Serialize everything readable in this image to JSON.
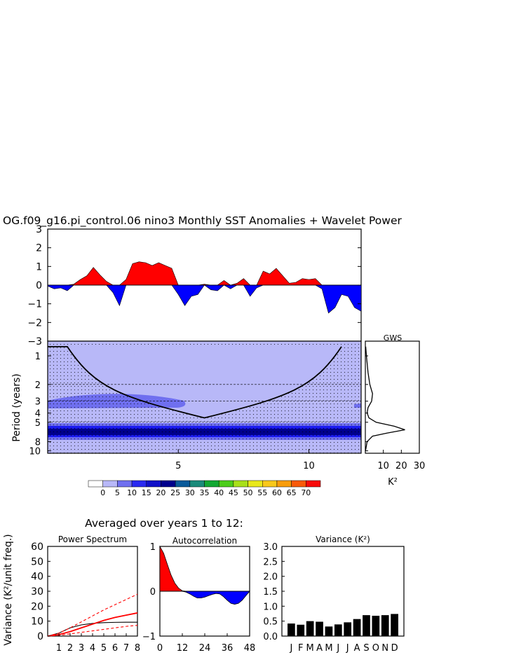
{
  "title": "OG.f09_g16.pi_control.06 nino3 Monthly SST Anomalies + Wavelet Power",
  "colors": {
    "positive": "#ff0000",
    "negative": "#0000ff",
    "cone_fill": "#b8b8f8",
    "bands": [
      "#b8b8f8",
      "#6f6fef",
      "#1a1aee",
      "#00008c"
    ]
  },
  "chart_data": [
    {
      "id": "sst_anomalies",
      "type": "area",
      "title": "OG.f09_g16.pi_control.06 nino3 Monthly SST Anomalies + Wavelet Power",
      "xlabel": "",
      "ylabel": "",
      "ylim": [
        -3,
        3
      ],
      "yticks": [
        "3",
        "2",
        "1",
        "0",
        "−1",
        "−2",
        "−3"
      ],
      "x": [
        0.0,
        0.25,
        0.5,
        0.75,
        1.0,
        1.25,
        1.5,
        1.75,
        2.0,
        2.25,
        2.5,
        2.75,
        3.0,
        3.25,
        3.5,
        3.75,
        4.0,
        4.25,
        4.5,
        4.75,
        5.0,
        5.25,
        5.5,
        5.75,
        6.0,
        6.25,
        6.5,
        6.75,
        7.0,
        7.25,
        7.5,
        7.75,
        8.0,
        8.25,
        8.5,
        8.75,
        9.0,
        9.25,
        9.5,
        9.75,
        10.0,
        10.25,
        10.5,
        10.75,
        11.0,
        11.25,
        11.5,
        11.75,
        12.0
      ],
      "values": [
        -0.05,
        -0.2,
        -0.15,
        -0.3,
        0.05,
        0.3,
        0.5,
        0.95,
        0.55,
        0.2,
        -0.4,
        -1.1,
        0.3,
        1.15,
        1.25,
        1.2,
        1.05,
        1.2,
        1.05,
        0.9,
        -0.5,
        -1.1,
        -0.6,
        -0.5,
        0.05,
        -0.25,
        -0.3,
        0.25,
        -0.2,
        0.1,
        0.35,
        -0.6,
        -0.15,
        0.75,
        0.6,
        0.9,
        0.5,
        0.1,
        0.15,
        0.35,
        0.3,
        0.35,
        -0.2,
        -1.5,
        -1.2,
        -0.5,
        -0.6,
        -1.2,
        -1.4
      ]
    },
    {
      "id": "wavelet_power",
      "type": "heatmap",
      "xlabel": "",
      "ylabel": "Period (years)",
      "xlim": [
        0,
        12
      ],
      "xticks": [
        "5",
        "10"
      ],
      "xtick_values": [
        5,
        10
      ],
      "yticks": [
        "1",
        "2",
        "3",
        "4",
        "5",
        "8",
        "10"
      ],
      "ytick_values": [
        1,
        2,
        3,
        4,
        5,
        8,
        10
      ],
      "dashed_periods": [
        2,
        3,
        5
      ],
      "colorbar": {
        "labels": [
          "0",
          "5",
          "10",
          "15",
          "20",
          "25",
          "30",
          "35",
          "40",
          "45",
          "50",
          "55",
          "60",
          "65",
          "70"
        ],
        "colors": [
          "#ffffff",
          "#b8b8f8",
          "#6f6fef",
          "#2a2af0",
          "#1010c8",
          "#00008c",
          "#0a5a9a",
          "#1a8a7a",
          "#12a832",
          "#4ccd1a",
          "#a8e01a",
          "#e8e81a",
          "#f8c81a",
          "#f89c0a",
          "#f85a0a",
          "#f80a0a"
        ]
      },
      "cone_of_influence": {
        "min_period": 0.8,
        "apex_x": 6.0,
        "apex_period": 4.5
      }
    },
    {
      "id": "gws",
      "type": "line",
      "title": "GWS",
      "xlabel": "K²",
      "xticks": [
        "10",
        "20",
        "30"
      ],
      "xlim": [
        0,
        30
      ],
      "periods": [
        0.8,
        1,
        1.5,
        2,
        2.5,
        3,
        3.5,
        4,
        4.5,
        5,
        5.5,
        6,
        6.5,
        7,
        8,
        10
      ],
      "values": [
        0.2,
        0.6,
        1.5,
        2.5,
        4,
        3.5,
        1.5,
        1,
        2,
        6,
        16,
        22,
        12,
        4,
        1,
        0.1
      ]
    },
    {
      "id": "power_spectrum",
      "type": "line",
      "title": "Power Spectrum",
      "suptitle": "Averaged over years 1 to 12:",
      "xlabel": "",
      "ylabel": "Variance (K²/unit freq.)",
      "x": [
        0,
        1,
        2,
        3,
        4,
        5,
        6,
        7,
        8
      ],
      "xticks": [
        "1",
        "2",
        "3",
        "4",
        "5",
        "6",
        "7",
        "8"
      ],
      "ylim": [
        0,
        60
      ],
      "yticks": [
        "60",
        "50",
        "40",
        "30",
        "20",
        "10",
        "0"
      ],
      "series": [
        {
          "values": [
            0,
            2,
            5.5,
            7.5,
            8.5,
            9,
            9.2,
            9.3,
            9.3
          ],
          "color": "#000000",
          "dash": ""
        },
        {
          "values": [
            0,
            1,
            3,
            5.5,
            8,
            10.5,
            12.5,
            14,
            15.5
          ],
          "color": "#ff0000",
          "dash": ""
        },
        {
          "values": [
            0,
            2,
            5.5,
            9.5,
            13.5,
            17.5,
            21,
            24.5,
            28
          ],
          "color": "#ff0000",
          "dash": "4,3"
        },
        {
          "values": [
            0,
            0.5,
            1.5,
            2.5,
            3.5,
            4.5,
            5.5,
            6.5,
            7.2
          ],
          "color": "#ff0000",
          "dash": "4,3"
        }
      ]
    },
    {
      "id": "autocorrelation",
      "type": "area",
      "title": "Autocorrelation",
      "xlabel": "",
      "ylim": [
        -1,
        1
      ],
      "yticks": [
        "1",
        "0",
        "−1"
      ],
      "xticks": [
        "0",
        "12",
        "24",
        "36",
        "48"
      ],
      "x": [
        0,
        2,
        4,
        6,
        8,
        10,
        12,
        14,
        16,
        18,
        20,
        22,
        24,
        26,
        28,
        30,
        32,
        34,
        36,
        38,
        40,
        42,
        44,
        46,
        48
      ],
      "values": [
        1.0,
        0.85,
        0.6,
        0.36,
        0.18,
        0.07,
        0.01,
        -0.02,
        -0.06,
        -0.11,
        -0.15,
        -0.15,
        -0.13,
        -0.1,
        -0.07,
        -0.05,
        -0.06,
        -0.12,
        -0.2,
        -0.27,
        -0.29,
        -0.27,
        -0.2,
        -0.1,
        0.0
      ]
    },
    {
      "id": "monthly_variance",
      "type": "bar",
      "title": "Variance (K²)",
      "categories": [
        "J",
        "F",
        "M",
        "A",
        "M",
        "J",
        "J",
        "A",
        "S",
        "O",
        "N",
        "D"
      ],
      "values": [
        0.42,
        0.38,
        0.5,
        0.48,
        0.32,
        0.39,
        0.46,
        0.57,
        0.7,
        0.68,
        0.7,
        0.74
      ],
      "ylim": [
        0,
        3
      ],
      "yticks": [
        "3.0",
        "2.5",
        "2.0",
        "1.5",
        "1.0",
        "0.5",
        "0.0"
      ]
    }
  ]
}
